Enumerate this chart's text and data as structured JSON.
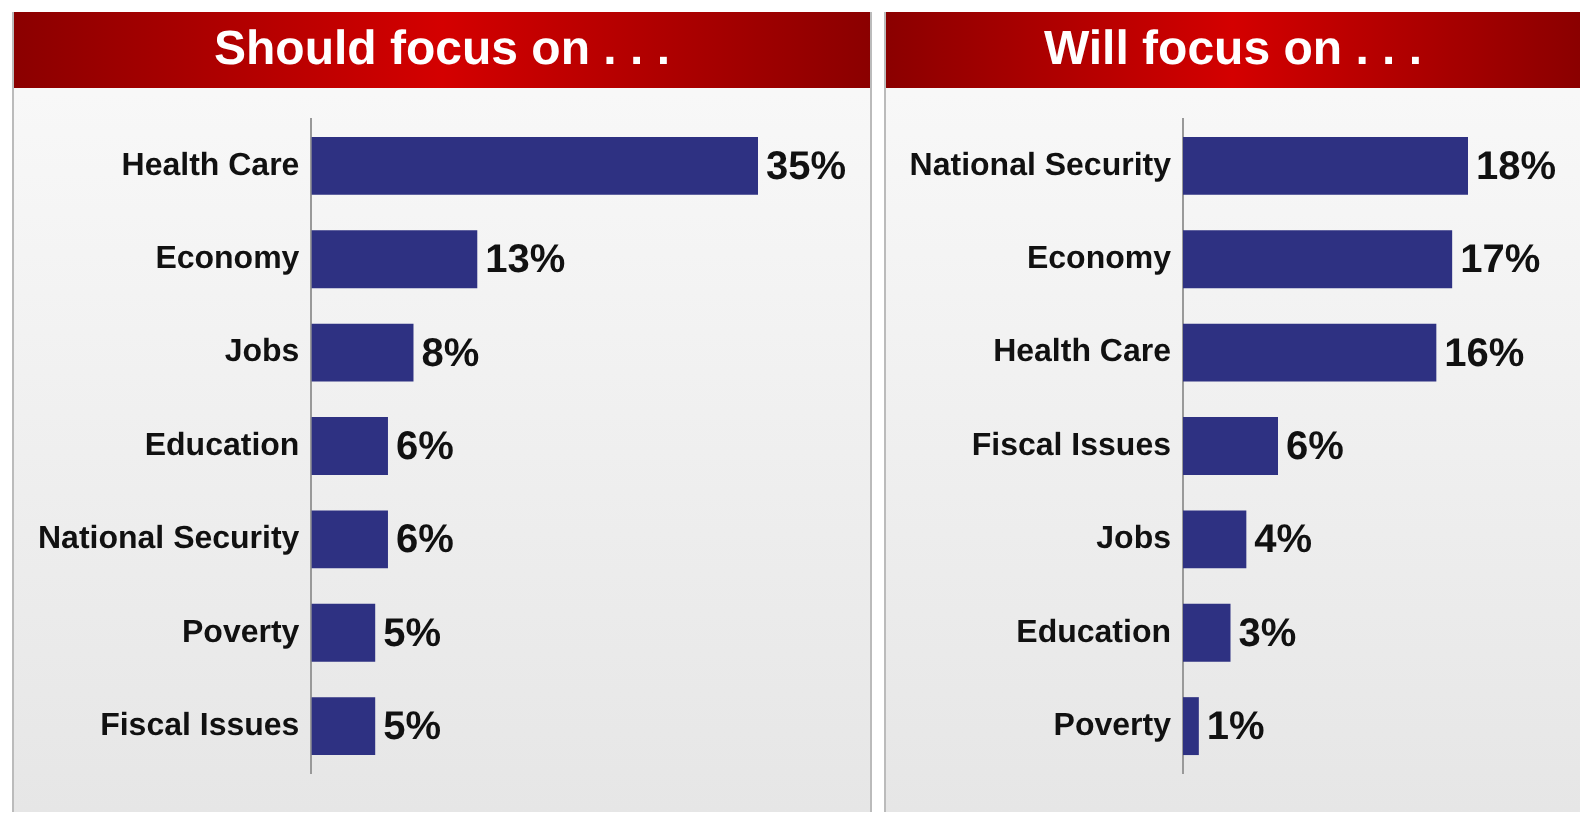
{
  "chart_data": [
    {
      "type": "bar",
      "orientation": "horizontal",
      "title": "Should focus on . . .",
      "categories": [
        "Health Care",
        "Economy",
        "Jobs",
        "Education",
        "National Security",
        "Poverty",
        "Fiscal Issues"
      ],
      "values": [
        35,
        13,
        8,
        6,
        6,
        5,
        5
      ],
      "color": "#2e3182",
      "data_labels": true,
      "value_labels": [
        "35%",
        "13%",
        "8%",
        "6%",
        "6%",
        "5%",
        "5%"
      ],
      "grid": false,
      "legend": false,
      "tick_labels": "y"
    },
    {
      "type": "bar",
      "orientation": "horizontal",
      "title": "Will focus on . . .",
      "categories": [
        "National Security",
        "Economy",
        "Health Care",
        "Fiscal Issues",
        "Jobs",
        "Education",
        "Poverty"
      ],
      "values": [
        18,
        17,
        16,
        6,
        4,
        3,
        1
      ],
      "color": "#2e3182",
      "data_labels": true,
      "value_labels": [
        "18%",
        "17%",
        "16%",
        "6%",
        "4%",
        "3%",
        "1%"
      ],
      "grid": false,
      "legend": false,
      "tick_labels": "y"
    }
  ]
}
